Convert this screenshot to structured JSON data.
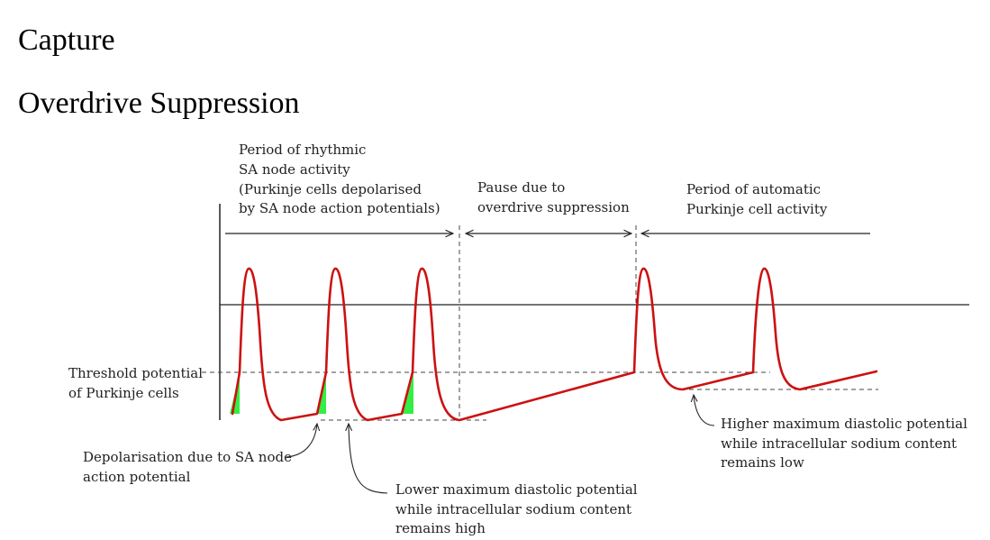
{
  "title": "Capture",
  "subtitle": "Overdrive Suppression",
  "colors": {
    "trace": "#cc1111",
    "depolarisation_fill": "#33ee44",
    "axis": "#222222",
    "dashed": "#444444"
  },
  "labels": {
    "rhythmic": [
      "Period of rhythmic",
      "SA node activity",
      "(Purkinje cells depolarised",
      "by SA node action potentials)"
    ],
    "pause": [
      "Pause due to",
      "overdrive suppression"
    ],
    "automatic": [
      "Period of automatic",
      "Purkinje cell activity"
    ],
    "threshold": [
      "Threshold potential",
      "of Purkinje cells"
    ],
    "depolarisation": [
      "Depolarisation due to SA node",
      "action potential"
    ],
    "lower_mdp": [
      "Lower maximum diastolic potential",
      "while intracellular sodium content",
      "remains high"
    ],
    "higher_mdp": [
      "Higher maximum diastolic potential",
      "while intracellular sodium content",
      "remains low"
    ]
  }
}
